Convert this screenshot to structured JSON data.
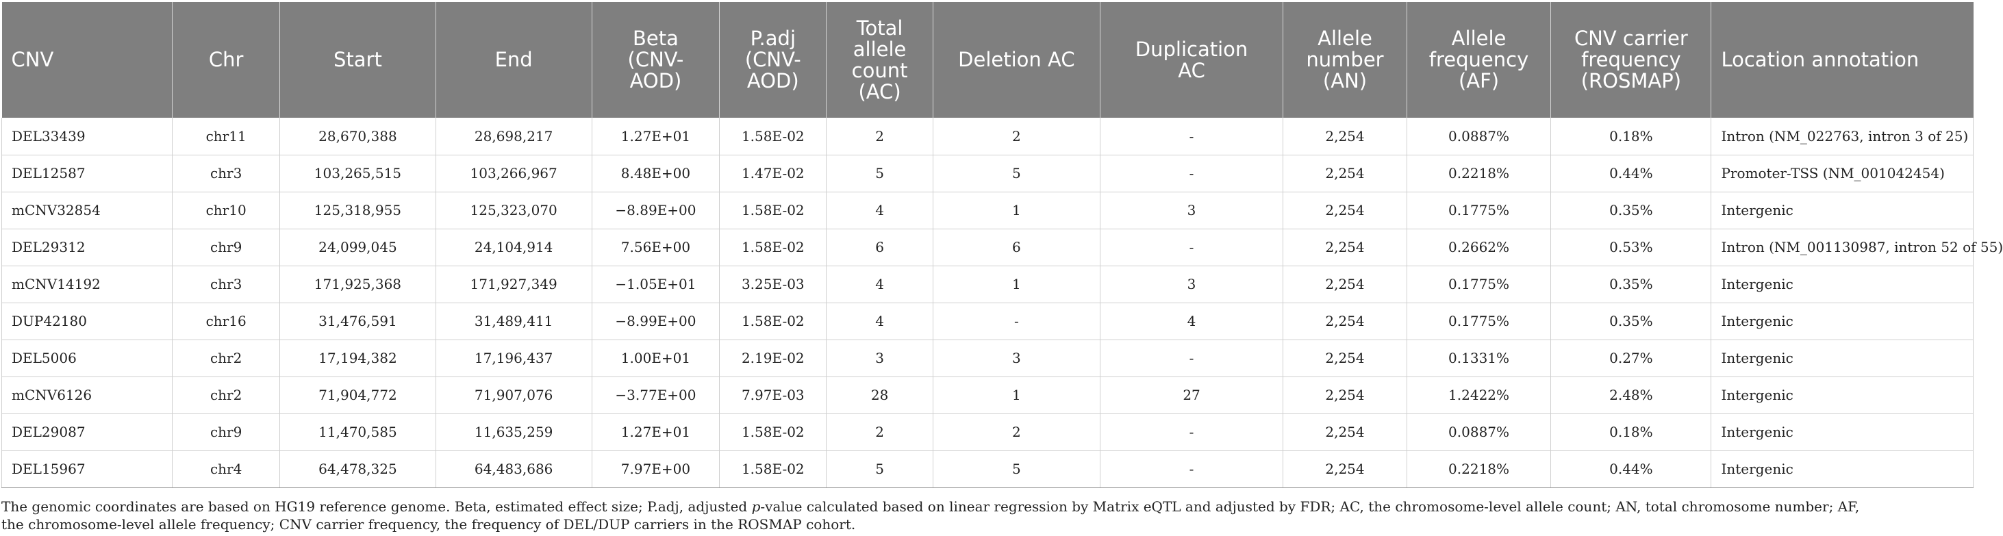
{
  "table": {
    "headers": [
      "CNV",
      "Chr",
      "Start",
      "End",
      "Beta\n(CNV-\nAOD)",
      "P.adj\n(CNV-\nAOD)",
      "Total\nallele\ncount\n(AC)",
      "Deletion AC",
      "Duplication\nAC",
      "Allele\nnumber\n(AN)",
      "Allele\nfrequency\n(AF)",
      "CNV carrier\nfrequency\n(ROSMAP)",
      "Location annotation"
    ],
    "rows": [
      [
        "DEL33439",
        "chr11",
        "28,670,388",
        "28,698,217",
        "1.27E+01",
        "1.58E-02",
        "2",
        "2",
        "-",
        "2,254",
        "0.0887%",
        "0.18%",
        "Intron (NM_022763, intron 3 of 25)"
      ],
      [
        "DEL12587",
        "chr3",
        "103,265,515",
        "103,266,967",
        "8.48E+00",
        "1.47E-02",
        "5",
        "5",
        "-",
        "2,254",
        "0.2218%",
        "0.44%",
        "Promoter-TSS (NM_001042454)"
      ],
      [
        "mCNV32854",
        "chr10",
        "125,318,955",
        "125,323,070",
        "−8.89E+00",
        "1.58E-02",
        "4",
        "1",
        "3",
        "2,254",
        "0.1775%",
        "0.35%",
        "Intergenic"
      ],
      [
        "DEL29312",
        "chr9",
        "24,099,045",
        "24,104,914",
        "7.56E+00",
        "1.58E-02",
        "6",
        "6",
        "-",
        "2,254",
        "0.2662%",
        "0.53%",
        "Intron (NM_001130987, intron 52 of 55)"
      ],
      [
        "mCNV14192",
        "chr3",
        "171,925,368",
        "171,927,349",
        "−1.05E+01",
        "3.25E-03",
        "4",
        "1",
        "3",
        "2,254",
        "0.1775%",
        "0.35%",
        "Intergenic"
      ],
      [
        "DUP42180",
        "chr16",
        "31,476,591",
        "31,489,411",
        "−8.99E+00",
        "1.58E-02",
        "4",
        "-",
        "4",
        "2,254",
        "0.1775%",
        "0.35%",
        "Intergenic"
      ],
      [
        "DEL5006",
        "chr2",
        "17,194,382",
        "17,196,437",
        "1.00E+01",
        "2.19E-02",
        "3",
        "3",
        "-",
        "2,254",
        "0.1331%",
        "0.27%",
        "Intergenic"
      ],
      [
        "mCNV6126",
        "chr2",
        "71,904,772",
        "71,907,076",
        "−3.77E+00",
        "7.97E-03",
        "28",
        "1",
        "27",
        "2,254",
        "1.2422%",
        "2.48%",
        "Intergenic"
      ],
      [
        "DEL29087",
        "chr9",
        "11,470,585",
        "11,635,259",
        "1.27E+01",
        "1.58E-02",
        "2",
        "2",
        "-",
        "2,254",
        "0.0887%",
        "0.18%",
        "Intergenic"
      ],
      [
        "DEL15967",
        "chr4",
        "64,478,325",
        "64,483,686",
        "7.97E+00",
        "1.58E-02",
        "5",
        "5",
        "-",
        "2,254",
        "0.2218%",
        "0.44%",
        "Intergenic"
      ]
    ]
  },
  "footnote": {
    "part1": "The genomic coordinates are based on HG19 reference genome. Beta, estimated effect size; P.adj, adjusted ",
    "italic": "p",
    "part2": "-value calculated based on linear regression by Matrix eQTL and adjusted by FDR; AC, the chromosome-level allele count; AN, total chromosome number; AF,",
    "line2": "the chromosome-level allele frequency; CNV carrier frequency, the frequency of DEL/DUP carriers in the ROSMAP cohort."
  }
}
